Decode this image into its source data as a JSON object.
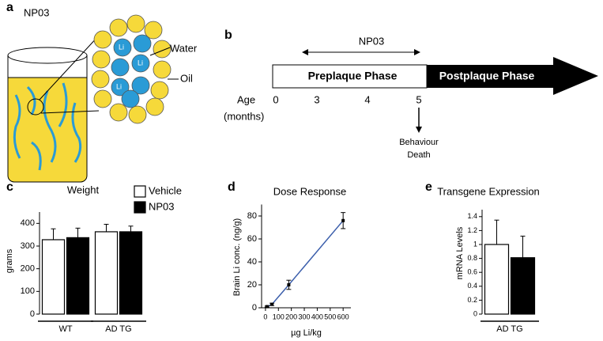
{
  "panel_a": {
    "label": "a",
    "title": "NP03",
    "water": "Water",
    "oil": "Oil",
    "droplet": "Li"
  },
  "panel_b": {
    "label": "b",
    "drug": "NP03",
    "phase_1": "Preplaque Phase",
    "phase_2": "Postplaque Phase",
    "age_label": "Age",
    "age_unit": "(months)",
    "ages": [
      0,
      3,
      4,
      5
    ],
    "outcome_1": "Behaviour",
    "outcome_2": "Death"
  },
  "chart_data": [
    {
      "type": "bar",
      "panel": "c",
      "title": "Weight",
      "ylabel": "grams",
      "categories": [
        "WT",
        "AD TG"
      ],
      "series": [
        {
          "name": "Vehicle",
          "color": "#ffffff",
          "values": [
            328,
            363
          ],
          "errors": [
            48,
            33
          ]
        },
        {
          "name": "NP03",
          "color": "#000000",
          "values": [
            337,
            363
          ],
          "errors": [
            42,
            25
          ]
        }
      ],
      "ylim": [
        0,
        450
      ],
      "yticks": [
        0,
        100,
        200,
        300,
        400
      ],
      "legend": "upper right"
    },
    {
      "type": "line",
      "panel": "d",
      "title": "Dose Response",
      "xlabel": "µg Li/kg",
      "ylabel": "Brain Li conc. (ng/g)",
      "x": [
        12,
        50,
        180,
        600
      ],
      "values": [
        1,
        3,
        20,
        76
      ],
      "errors": [
        0.5,
        1,
        4,
        7
      ],
      "color": "#3b5eab",
      "xlim": [
        -30,
        660
      ],
      "xticks": [
        0,
        100,
        200,
        300,
        400,
        500,
        600
      ],
      "ylim": [
        0,
        90
      ],
      "yticks": [
        0,
        20,
        40,
        60,
        80
      ]
    },
    {
      "type": "bar",
      "panel": "e",
      "title": "Transgene Expression",
      "ylabel": "mRNA Levels",
      "categories": [
        "AD TG"
      ],
      "series": [
        {
          "color": "#ffffff",
          "values": [
            1.0
          ],
          "errors": [
            0.35
          ]
        },
        {
          "color": "#000000",
          "values": [
            0.81
          ],
          "errors": [
            0.31
          ]
        }
      ],
      "ylim": [
        0,
        1.5
      ],
      "yticks": [
        0,
        0.2,
        0.4,
        0.6,
        0.8,
        1,
        1.2,
        1.4
      ]
    }
  ]
}
